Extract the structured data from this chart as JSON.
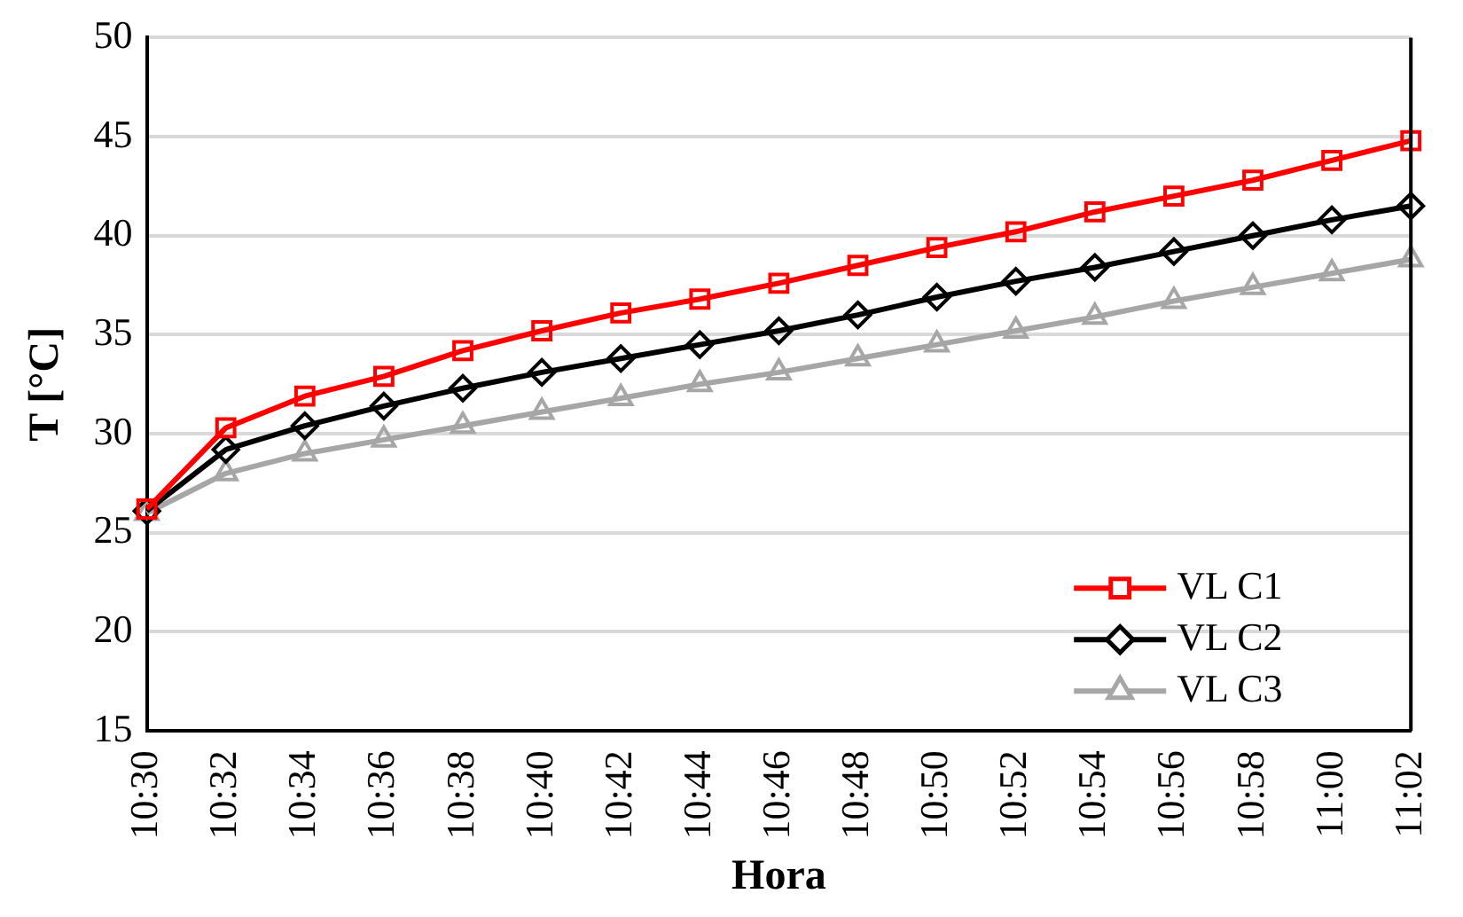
{
  "chart_data": {
    "type": "line",
    "xlabel": "Hora",
    "ylabel": "T [°C]",
    "categories": [
      "10:30",
      "10:32",
      "10:34",
      "10:36",
      "10:38",
      "10:40",
      "10:42",
      "10:44",
      "10:46",
      "10:48",
      "10:50",
      "10:52",
      "10:54",
      "10:56",
      "10:58",
      "11:00",
      "11:02"
    ],
    "series": [
      {
        "name": "VL C1",
        "color": "#ff0000",
        "marker": "square",
        "values": [
          26.2,
          30.3,
          31.9,
          32.9,
          34.2,
          35.2,
          36.1,
          36.8,
          37.6,
          38.5,
          39.4,
          40.2,
          41.2,
          42.0,
          42.8,
          43.8,
          44.8
        ]
      },
      {
        "name": "VL C2",
        "color": "#000000",
        "marker": "diamond",
        "values": [
          26.1,
          29.2,
          30.4,
          31.4,
          32.3,
          33.1,
          33.8,
          34.5,
          35.2,
          36.0,
          36.9,
          37.7,
          38.4,
          39.2,
          40.0,
          40.8,
          41.5
        ]
      },
      {
        "name": "VL C3",
        "color": "#a6a6a6",
        "marker": "triangle",
        "values": [
          26.0,
          28.0,
          29.0,
          29.7,
          30.4,
          31.1,
          31.8,
          32.5,
          33.1,
          33.8,
          34.5,
          35.2,
          35.9,
          36.7,
          37.4,
          38.1,
          38.8
        ]
      }
    ],
    "ylim": [
      15,
      50
    ],
    "yticks": [
      15,
      20,
      25,
      30,
      35,
      40,
      45,
      50
    ],
    "grid": "y",
    "legend": "bottom right",
    "line_style": "solid"
  }
}
